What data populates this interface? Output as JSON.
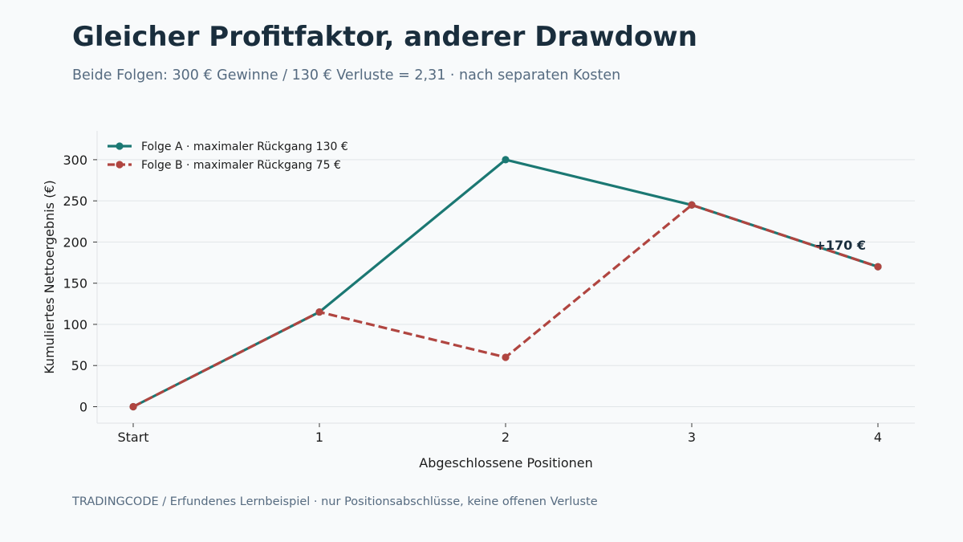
{
  "header": {
    "title": "Gleicher Profitfaktor, anderer Drawdown",
    "subtitle": "Beide Folgen: 300 € Gewinne / 130 € Verluste = 2,31 · nach separaten Kosten"
  },
  "footer": {
    "text": "TRADINGCODE  /  Erfundenes Lernbeispiel · nur Positionsabschlüsse, keine offenen Verluste"
  },
  "chart_data": {
    "type": "line",
    "categories": [
      "Start",
      "1",
      "2",
      "3",
      "4"
    ],
    "series": [
      {
        "name": "Folge A · maximaler Rückgang 130 €",
        "values": [
          0,
          115,
          300,
          245,
          170
        ],
        "color": "#1b7873",
        "dash": "solid"
      },
      {
        "name": "Folge B · maximaler Rückgang 75 €",
        "values": [
          0,
          115,
          60,
          245,
          170
        ],
        "color": "#b04540",
        "dash": "dashed"
      }
    ],
    "xlabel": "Abgeschlossene Positionen",
    "ylabel": "Kumuliertes Nettoergebnis (€)",
    "ylim": [
      -20,
      335
    ],
    "yticks": [
      0,
      50,
      100,
      150,
      200,
      250,
      300
    ],
    "grid": true,
    "legend_position": "top-left",
    "annotation": {
      "text": "+170 €",
      "category": "4",
      "value": 170
    }
  }
}
